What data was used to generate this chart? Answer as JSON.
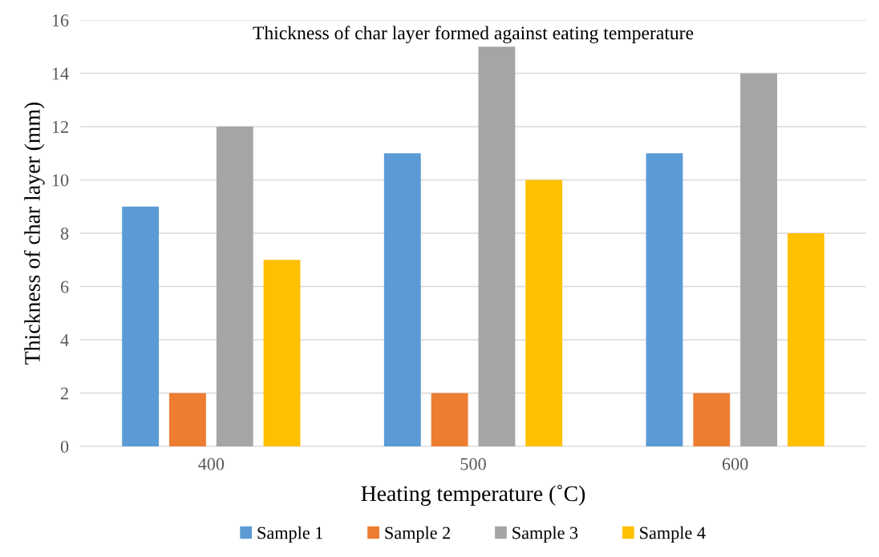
{
  "chart_data": {
    "type": "bar",
    "title": "Thickness of char layer formed against eating temperature",
    "xlabel": "Heating temperature (˚C)",
    "ylabel": "Thickness of char layer (mm)",
    "categories": [
      "400",
      "500",
      "600"
    ],
    "series": [
      {
        "name": "Sample 1",
        "color": "#5b9bd5",
        "values": [
          9,
          11,
          11
        ]
      },
      {
        "name": "Sample 2",
        "color": "#ed7d31",
        "values": [
          2,
          2,
          2
        ]
      },
      {
        "name": "Sample 3",
        "color": "#a5a5a5",
        "values": [
          12,
          15,
          14
        ]
      },
      {
        "name": "Sample 4",
        "color": "#ffc000",
        "values": [
          7,
          10,
          8
        ]
      }
    ],
    "ylim": [
      0,
      16
    ],
    "yticks": [
      0,
      2,
      4,
      6,
      8,
      10,
      12,
      14,
      16
    ],
    "grid": "y",
    "legend": "bottom"
  }
}
